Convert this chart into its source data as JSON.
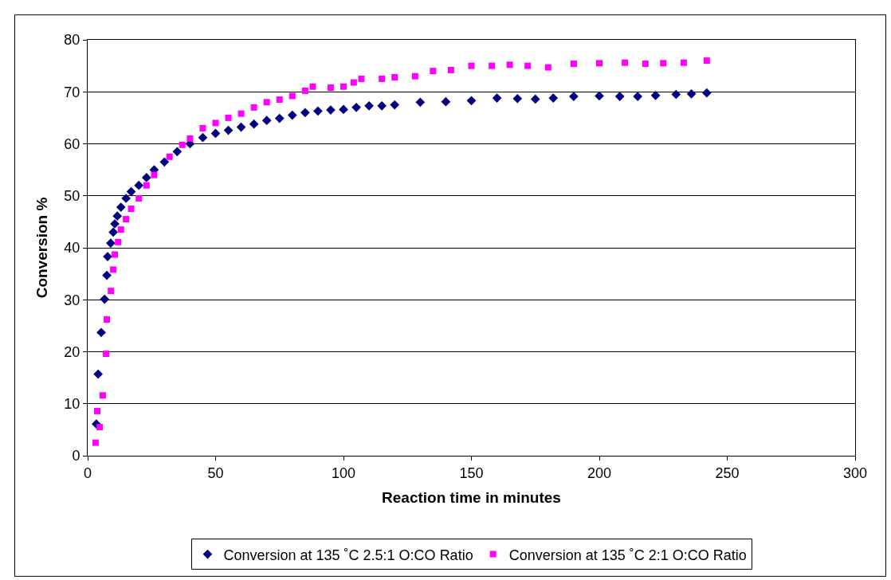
{
  "chart_data": {
    "type": "scatter",
    "xlabel": "Reaction time in minutes",
    "ylabel": "Conversion %",
    "xlim": [
      0,
      300
    ],
    "xticks": [
      0,
      50,
      100,
      150,
      200,
      250,
      300
    ],
    "ylim": [
      0,
      80
    ],
    "yticks": [
      0,
      10,
      20,
      30,
      40,
      50,
      60,
      70,
      80
    ],
    "grid": "y",
    "legend": "bottom",
    "series": [
      {
        "name": "Conversion at 135 ˚C 2.5:1 O:CO Ratio",
        "color": "#000080",
        "marker": "diamond",
        "x": [
          3.4,
          4.1,
          5.3,
          6.6,
          7.5,
          7.8,
          9,
          10,
          10.6,
          11.6,
          13,
          15,
          17,
          20,
          23,
          26,
          30,
          35,
          40,
          45,
          50,
          55,
          60,
          65,
          70,
          75,
          80,
          85,
          90,
          95,
          100,
          105,
          110,
          115,
          120,
          130,
          140,
          150,
          160,
          168,
          175,
          182,
          190,
          200,
          208,
          215,
          222,
          230,
          236,
          242
        ],
        "values": [
          6.1,
          15.7,
          23.7,
          30.1,
          34.7,
          38.3,
          40.9,
          43,
          44.6,
          46.1,
          47.8,
          49.5,
          50.8,
          52,
          53.5,
          55,
          56.5,
          58.5,
          60,
          61.2,
          62,
          62.6,
          63.2,
          63.8,
          64.5,
          64.9,
          65.5,
          66,
          66.3,
          66.5,
          66.6,
          67,
          67.3,
          67.3,
          67.5,
          68,
          68.1,
          68.3,
          68.8,
          68.7,
          68.6,
          68.8,
          69.1,
          69.2,
          69.1,
          69.1,
          69.3,
          69.5,
          69.6,
          69.8
        ]
      },
      {
        "name": "Conversion at 135 ˚C 2:1 O:CO Ratio",
        "color": "#ff00ff",
        "marker": "square",
        "x": [
          3.1,
          4.7,
          3.75,
          5.9,
          7.2,
          7.5,
          9.1,
          10,
          10.6,
          11.9,
          13,
          15,
          17,
          20,
          23,
          26,
          32,
          37,
          40,
          45,
          50,
          55,
          60,
          65,
          70,
          75,
          80,
          85,
          88,
          95,
          100,
          104,
          107,
          115,
          120,
          128,
          135,
          142,
          150,
          158,
          165,
          172,
          180,
          190,
          200,
          210,
          218,
          225,
          233,
          242
        ],
        "values": [
          2.5,
          5.5,
          8.6,
          11.6,
          19.6,
          26.2,
          31.7,
          35.8,
          38.7,
          41.1,
          43.5,
          45.5,
          47.5,
          49.5,
          52,
          54,
          57.5,
          59.8,
          61,
          63,
          64,
          65,
          65.8,
          67,
          68,
          68.5,
          69.2,
          70.2,
          71,
          70.8,
          71,
          71.8,
          72.5,
          72.5,
          72.8,
          73,
          74,
          74.2,
          75,
          75,
          75.2,
          75,
          74.7,
          75.4,
          75.5,
          75.6,
          75.4,
          75.5,
          75.6,
          76
        ]
      }
    ]
  }
}
